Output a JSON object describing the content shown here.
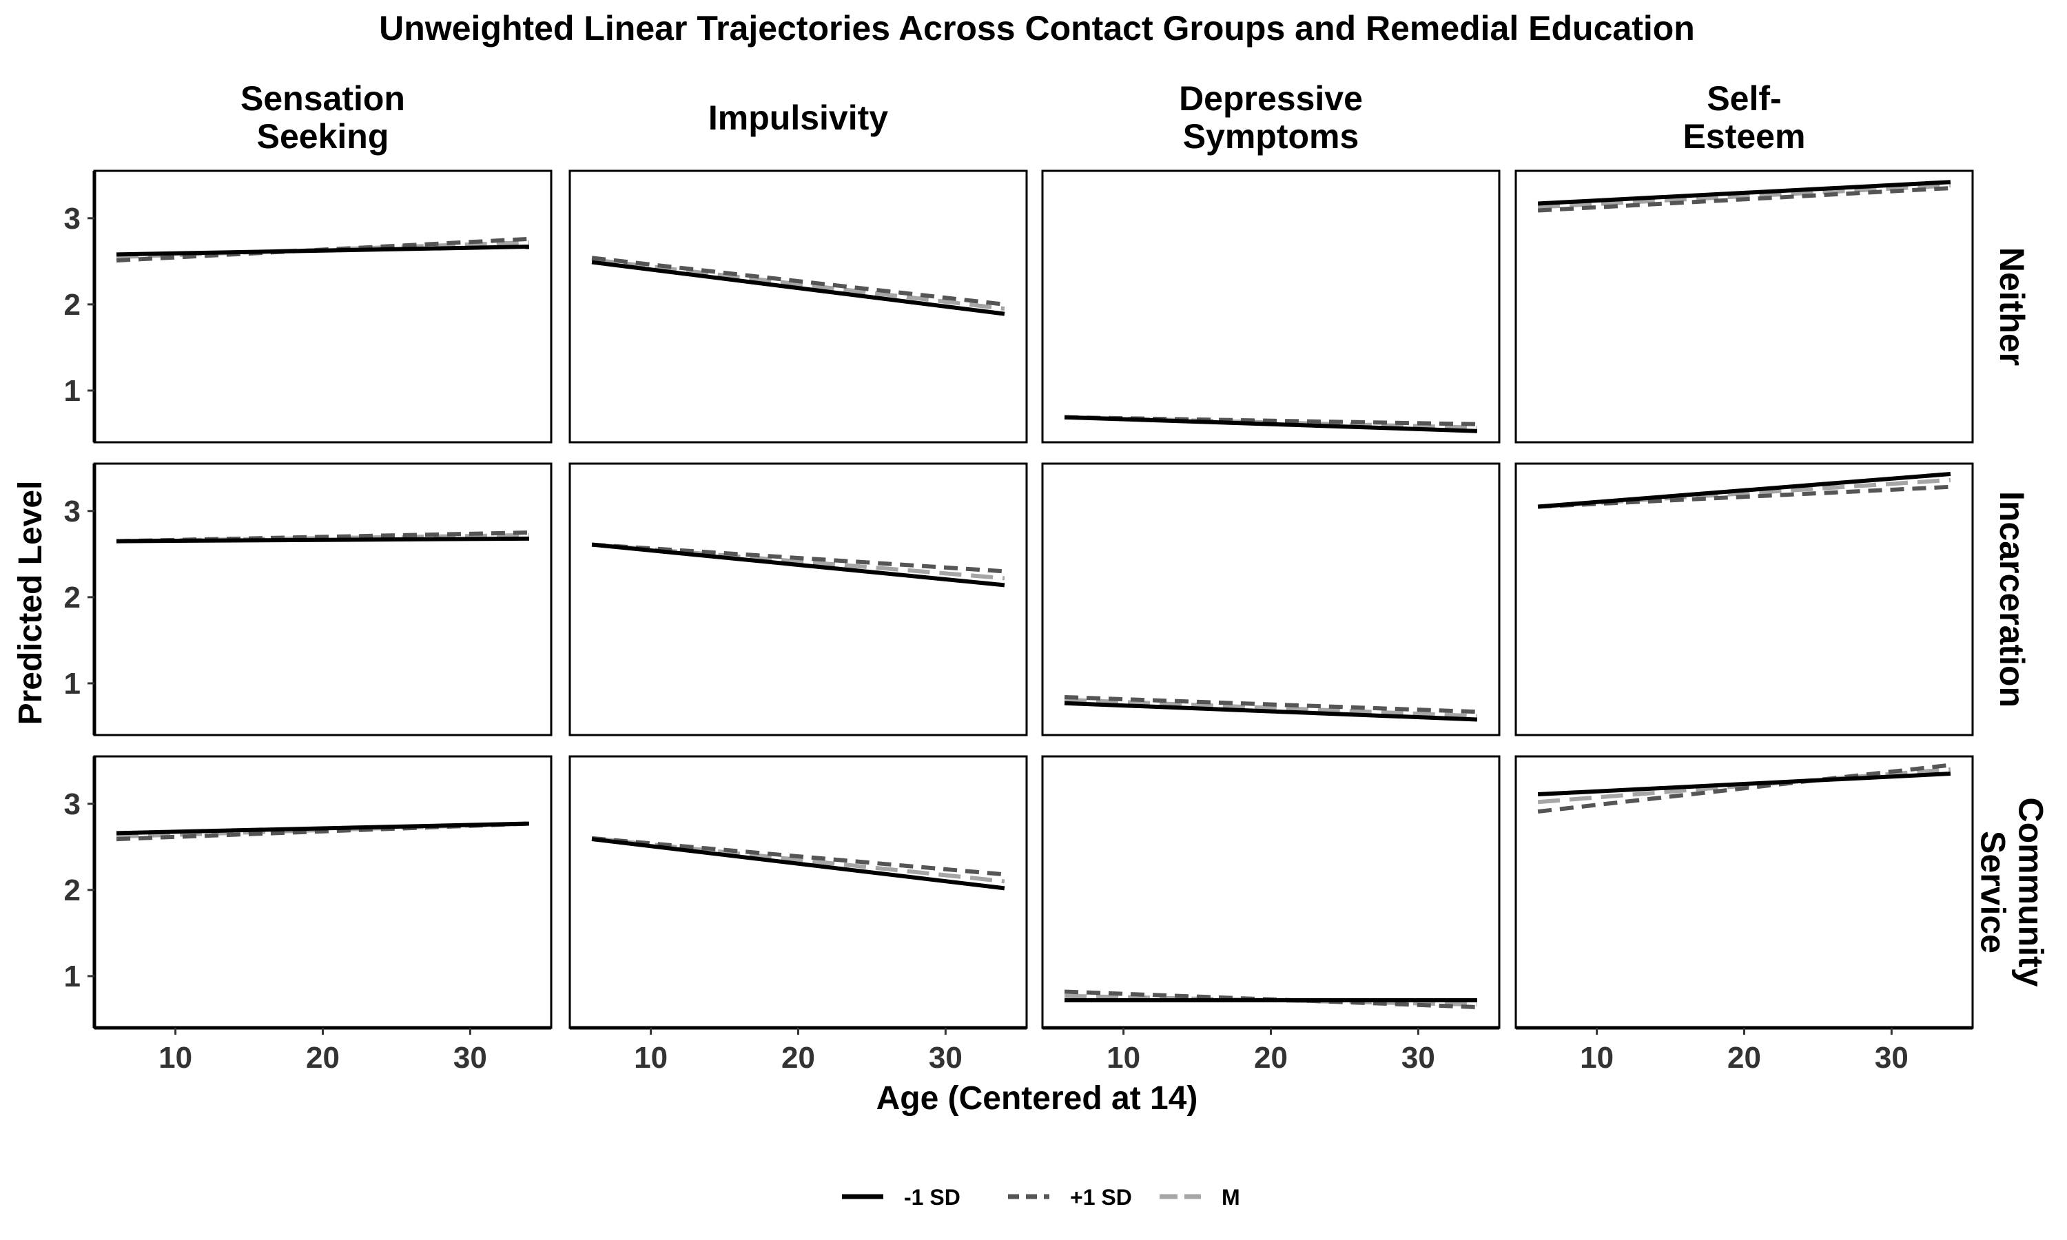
{
  "chart_data": {
    "type": "line",
    "title": "Unweighted Linear Trajectories Across Contact Groups and Remedial Education",
    "xlabel": "Age (Centered at 14)",
    "ylabel": "Predicted Level",
    "xlim": [
      4.5,
      35.5
    ],
    "ylim": [
      0.4,
      3.55
    ],
    "xticks": [
      10,
      20,
      30
    ],
    "yticks": [
      1,
      2,
      3
    ],
    "grid": false,
    "legend_position": "bottom",
    "col_facets": [
      "Sensation\nSeeking",
      "Impulsivity",
      "Depressive\nSymptoms",
      "Self-\nEsteem"
    ],
    "row_facets": [
      "Neither",
      "Incarceration",
      "Community\nService"
    ],
    "series": [
      {
        "name": "-1 SD",
        "color": "#000000",
        "dash": "solid"
      },
      {
        "name": "+1 SD",
        "color": "#555555",
        "dash": "dashed"
      },
      {
        "name": "M",
        "color": "#a6a6a6",
        "dash": "longdash"
      }
    ],
    "x_range": [
      6,
      34
    ],
    "panels": [
      {
        "row": "Neither",
        "col": "Sensation Seeking",
        "lines": {
          "-1 SD": [
            2.58,
            2.67
          ],
          "+1 SD": [
            2.51,
            2.76
          ],
          "M": [
            2.55,
            2.72
          ]
        }
      },
      {
        "row": "Neither",
        "col": "Impulsivity",
        "lines": {
          "-1 SD": [
            2.49,
            1.89
          ],
          "+1 SD": [
            2.54,
            2.0
          ],
          "M": [
            2.52,
            1.95
          ]
        }
      },
      {
        "row": "Neither",
        "col": "Depressive Symptoms",
        "lines": {
          "-1 SD": [
            0.69,
            0.53
          ],
          "+1 SD": [
            0.69,
            0.61
          ],
          "M": [
            0.69,
            0.57
          ]
        }
      },
      {
        "row": "Neither",
        "col": "Self-Esteem",
        "lines": {
          "-1 SD": [
            3.17,
            3.42
          ],
          "+1 SD": [
            3.09,
            3.35
          ],
          "M": [
            3.13,
            3.38
          ]
        }
      },
      {
        "row": "Incarceration",
        "col": "Sensation Seeking",
        "lines": {
          "-1 SD": [
            2.65,
            2.68
          ],
          "+1 SD": [
            2.65,
            2.75
          ],
          "M": [
            2.65,
            2.72
          ]
        }
      },
      {
        "row": "Incarceration",
        "col": "Impulsivity",
        "lines": {
          "-1 SD": [
            2.61,
            2.14
          ],
          "+1 SD": [
            2.61,
            2.3
          ],
          "M": [
            2.61,
            2.22
          ]
        }
      },
      {
        "row": "Incarceration",
        "col": "Depressive Symptoms",
        "lines": {
          "-1 SD": [
            0.77,
            0.58
          ],
          "+1 SD": [
            0.84,
            0.67
          ],
          "M": [
            0.81,
            0.62
          ]
        }
      },
      {
        "row": "Incarceration",
        "col": "Self-Esteem",
        "lines": {
          "-1 SD": [
            3.05,
            3.43
          ],
          "+1 SD": [
            3.05,
            3.28
          ],
          "M": [
            3.05,
            3.36
          ]
        }
      },
      {
        "row": "Community\nService",
        "col": "Sensation Seeking",
        "lines": {
          "-1 SD": [
            2.66,
            2.77
          ],
          "+1 SD": [
            2.59,
            2.77
          ],
          "M": [
            2.62,
            2.77
          ]
        }
      },
      {
        "row": "Community\nService",
        "col": "Impulsivity",
        "lines": {
          "-1 SD": [
            2.59,
            2.02
          ],
          "+1 SD": [
            2.6,
            2.18
          ],
          "M": [
            2.6,
            2.1
          ]
        }
      },
      {
        "row": "Community\nService",
        "col": "Depressive Symptoms",
        "lines": {
          "-1 SD": [
            0.72,
            0.72
          ],
          "+1 SD": [
            0.82,
            0.64
          ],
          "M": [
            0.77,
            0.67
          ]
        }
      },
      {
        "row": "Community\nService",
        "col": "Self-Esteem",
        "lines": {
          "-1 SD": [
            3.11,
            3.35
          ],
          "+1 SD": [
            2.91,
            3.45
          ],
          "M": [
            3.02,
            3.4
          ]
        }
      }
    ]
  }
}
